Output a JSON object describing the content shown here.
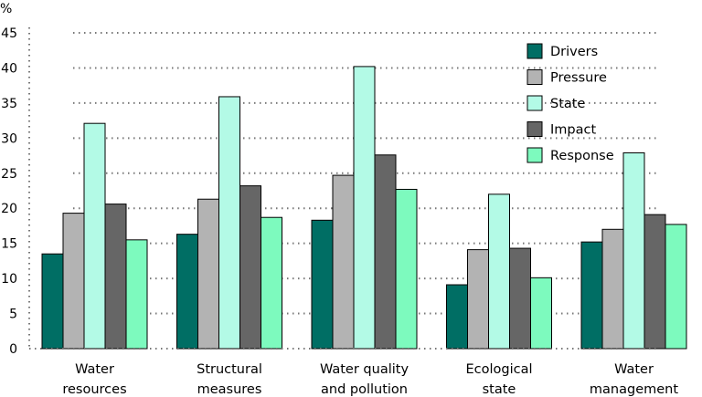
{
  "chart_data": {
    "type": "bar",
    "title": "",
    "xlabel": "",
    "ylabel": "%",
    "ylim": [
      0,
      45
    ],
    "yticks": [
      "0",
      "5",
      "10",
      "15",
      "20",
      "25",
      "30",
      "35",
      "40",
      "45"
    ],
    "grid": true,
    "legend_position": "top-right",
    "categories": [
      [
        "Water",
        "resources"
      ],
      [
        "Structural",
        "measures"
      ],
      [
        "Water quality",
        "and pollution"
      ],
      [
        "Ecological",
        "state"
      ],
      [
        "Water",
        "management"
      ]
    ],
    "series": [
      {
        "name": "Drivers",
        "color": "#006e64",
        "values": [
          13.5,
          16.3,
          18.3,
          9.1,
          15.2
        ]
      },
      {
        "name": "Pressure",
        "color": "#b3b3b3",
        "values": [
          19.3,
          21.3,
          24.7,
          14.1,
          17.0
        ]
      },
      {
        "name": "State",
        "color": "#b3fae6",
        "values": [
          32.1,
          35.9,
          40.2,
          22.0,
          27.9
        ]
      },
      {
        "name": "Impact",
        "color": "#666666",
        "values": [
          20.6,
          23.2,
          27.6,
          14.3,
          19.1
        ]
      },
      {
        "name": "Response",
        "color": "#7dfabe",
        "values": [
          15.5,
          18.7,
          22.7,
          10.1,
          17.7
        ]
      }
    ]
  }
}
